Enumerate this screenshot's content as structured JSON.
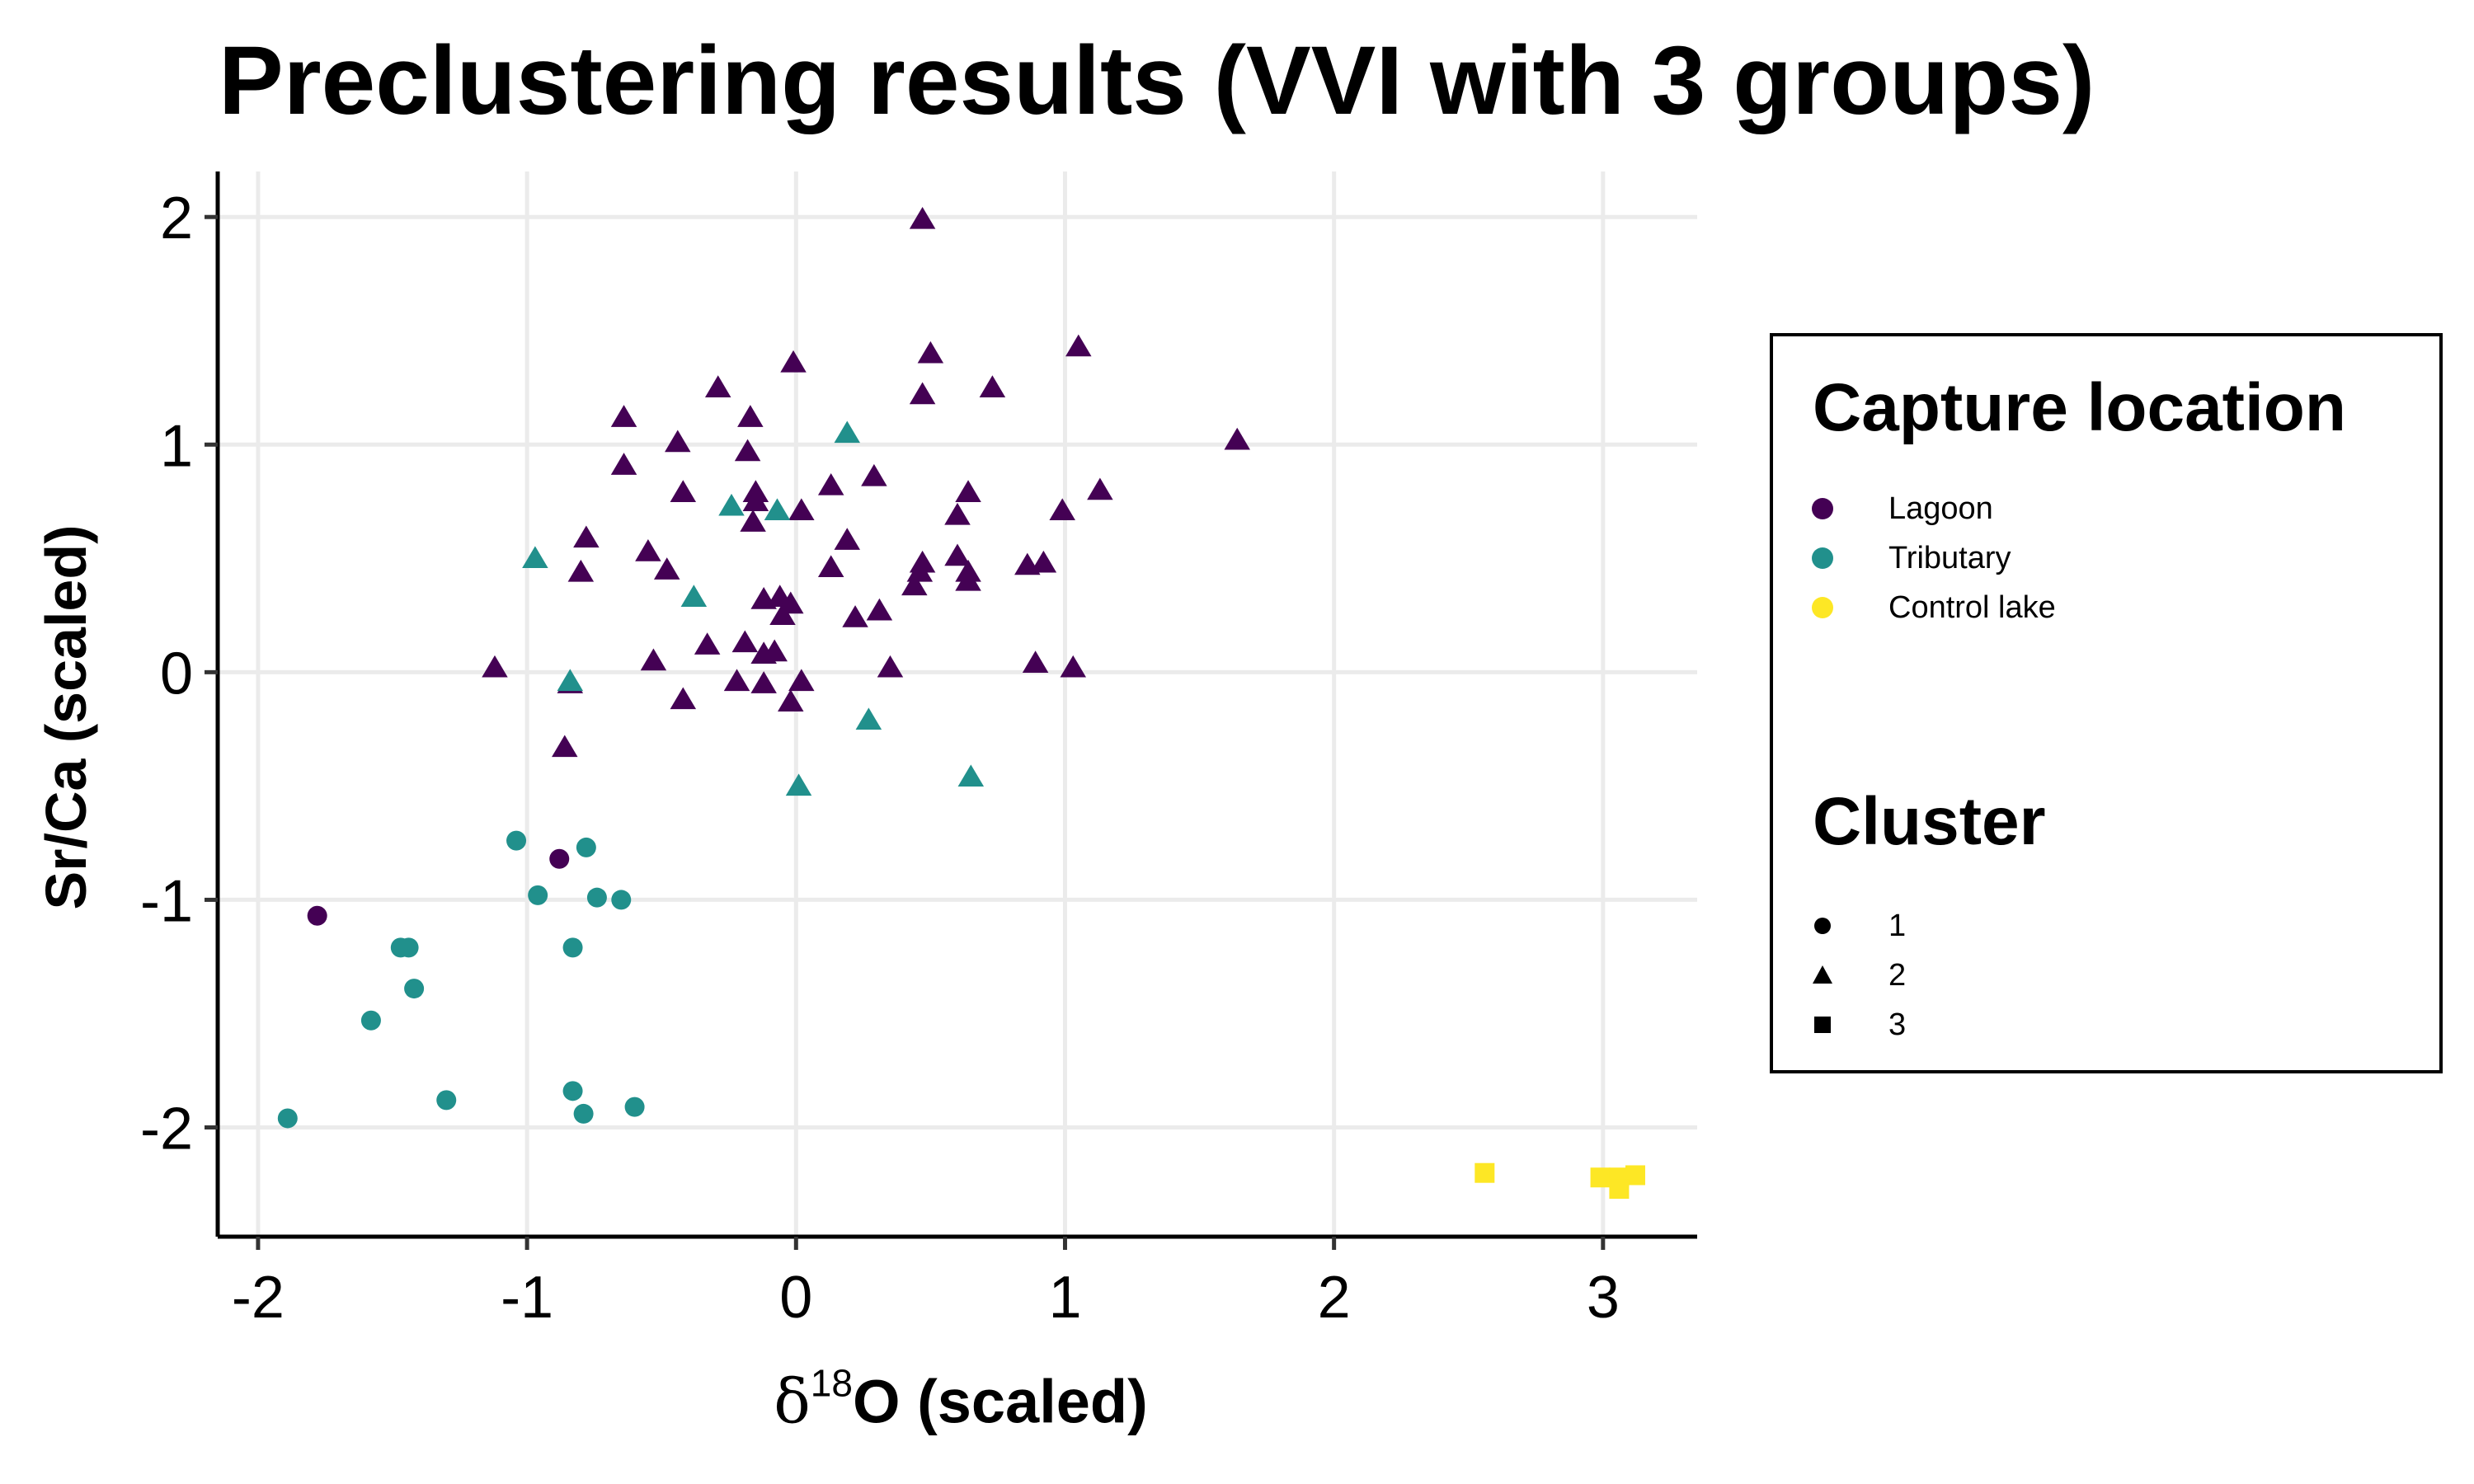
{
  "chart_data": {
    "type": "scatter",
    "title": "Preclustering results (VVI with 3 groups)",
    "xlabel": "O (scaled)",
    "xlabel_symbol": "δ",
    "xlabel_superscript": "18",
    "ylabel": "Sr/Ca (scaled)",
    "xlim": [
      -2.15,
      3.35
    ],
    "ylim": [
      -2.48,
      2.2
    ],
    "xticks": [
      -2,
      -1,
      0,
      1,
      2,
      3
    ],
    "yticks": [
      -2,
      -1,
      0,
      1,
      2
    ],
    "xtick_labels": [
      "-2",
      "-1",
      "0",
      "1",
      "2",
      "3"
    ],
    "ytick_labels": [
      "-2",
      "-1",
      "0",
      "1",
      "2"
    ],
    "grid": true,
    "colors": {
      "Lagoon": "#440154",
      "Tributary": "#21908C",
      "Control lake": "#FDE725"
    },
    "legend": {
      "placement": "right",
      "color_title": "Capture location",
      "color_entries": [
        "Lagoon",
        "Tributary",
        "Control lake"
      ],
      "shape_title": "Cluster",
      "shape_entries": [
        {
          "label": "1",
          "shape": "circle"
        },
        {
          "label": "2",
          "shape": "triangle"
        },
        {
          "label": "3",
          "shape": "square"
        }
      ]
    },
    "series": [
      {
        "location": "Lagoon",
        "cluster": "1",
        "shape": "circle",
        "points": [
          [
            -1.78,
            -1.07
          ],
          [
            -0.88,
            -0.82
          ]
        ]
      },
      {
        "location": "Tributary",
        "cluster": "1",
        "shape": "circle",
        "points": [
          [
            -1.04,
            -0.74
          ],
          [
            -0.96,
            -0.98
          ],
          [
            -0.78,
            -0.77
          ],
          [
            -0.74,
            -0.99
          ],
          [
            -0.65,
            -1.0
          ],
          [
            -1.47,
            -1.21
          ],
          [
            -1.44,
            -1.21
          ],
          [
            -0.83,
            -1.21
          ],
          [
            -1.42,
            -1.39
          ],
          [
            -1.58,
            -1.53
          ],
          [
            -1.89,
            -1.96
          ],
          [
            -1.3,
            -1.88
          ],
          [
            -0.83,
            -1.84
          ],
          [
            -0.79,
            -1.94
          ],
          [
            -0.6,
            -1.91
          ]
        ]
      },
      {
        "location": "Lagoon",
        "cluster": "2",
        "shape": "triangle",
        "points": [
          [
            0.47,
            1.99
          ],
          [
            1.05,
            1.43
          ],
          [
            0.5,
            1.4
          ],
          [
            -0.01,
            1.36
          ],
          [
            -0.29,
            1.25
          ],
          [
            0.73,
            1.25
          ],
          [
            0.47,
            1.22
          ],
          [
            -0.64,
            1.12
          ],
          [
            -0.17,
            1.12
          ],
          [
            -0.44,
            1.01
          ],
          [
            1.64,
            1.02
          ],
          [
            -0.18,
            0.97
          ],
          [
            -0.64,
            0.91
          ],
          [
            0.29,
            0.86
          ],
          [
            0.13,
            0.82
          ],
          [
            1.13,
            0.8
          ],
          [
            -0.42,
            0.79
          ],
          [
            -0.15,
            0.79
          ],
          [
            0.64,
            0.79
          ],
          [
            -0.15,
            0.75
          ],
          [
            0.02,
            0.71
          ],
          [
            0.99,
            0.71
          ],
          [
            0.6,
            0.69
          ],
          [
            -0.16,
            0.66
          ],
          [
            -0.78,
            0.59
          ],
          [
            0.19,
            0.58
          ],
          [
            -0.55,
            0.53
          ],
          [
            0.6,
            0.51
          ],
          [
            0.86,
            0.47
          ],
          [
            0.92,
            0.48
          ],
          [
            0.47,
            0.48
          ],
          [
            0.13,
            0.46
          ],
          [
            -0.48,
            0.45
          ],
          [
            -0.8,
            0.44
          ],
          [
            0.46,
            0.44
          ],
          [
            0.64,
            0.44
          ],
          [
            0.64,
            0.4
          ],
          [
            0.44,
            0.38
          ],
          [
            -0.12,
            0.32
          ],
          [
            -0.06,
            0.33
          ],
          [
            -0.02,
            0.3
          ],
          [
            -0.05,
            0.25
          ],
          [
            0.22,
            0.24
          ],
          [
            0.31,
            0.27
          ],
          [
            -0.33,
            0.12
          ],
          [
            -0.19,
            0.13
          ],
          [
            -0.12,
            0.08
          ],
          [
            -0.08,
            0.09
          ],
          [
            -0.53,
            0.05
          ],
          [
            -1.12,
            0.02
          ],
          [
            0.35,
            0.02
          ],
          [
            0.89,
            0.04
          ],
          [
            1.03,
            0.02
          ],
          [
            -0.22,
            -0.04
          ],
          [
            -0.12,
            -0.05
          ],
          [
            0.02,
            -0.04
          ],
          [
            -0.84,
            -0.05
          ],
          [
            -0.42,
            -0.12
          ],
          [
            -0.02,
            -0.13
          ],
          [
            -0.86,
            -0.33
          ]
        ]
      },
      {
        "location": "Tributary",
        "cluster": "2",
        "shape": "triangle",
        "points": [
          [
            0.19,
            1.05
          ],
          [
            -0.24,
            0.73
          ],
          [
            -0.07,
            0.71
          ],
          [
            -0.97,
            0.5
          ],
          [
            -0.38,
            0.33
          ],
          [
            -0.84,
            -0.04
          ],
          [
            0.27,
            -0.21
          ],
          [
            0.65,
            -0.46
          ],
          [
            0.01,
            -0.5
          ]
        ]
      },
      {
        "location": "Control lake",
        "cluster": "3",
        "shape": "square",
        "points": [
          [
            2.56,
            -2.2
          ],
          [
            2.99,
            -2.22
          ],
          [
            3.06,
            -2.22
          ],
          [
            3.12,
            -2.21
          ],
          [
            3.06,
            -2.27
          ]
        ]
      }
    ]
  }
}
